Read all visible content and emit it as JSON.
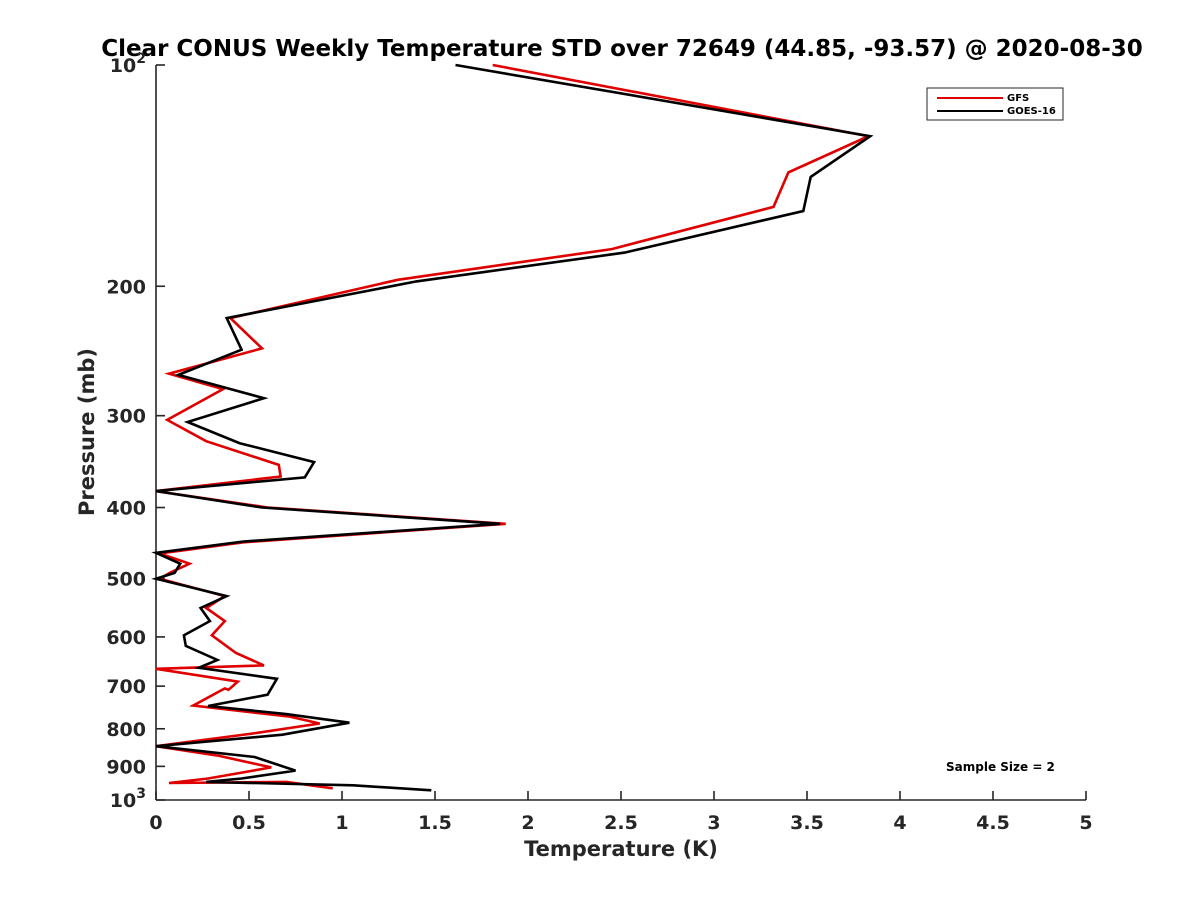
{
  "chart_data": {
    "type": "line",
    "title": "Clear CONUS Weekly Temperature STD over 72649 (44.85, -93.57) @ 2020-08-30",
    "xlabel": "Temperature (K)",
    "ylabel": "Pressure (mb)",
    "xlim": [
      0,
      5
    ],
    "ylim": [
      100,
      1000
    ],
    "yscale": "log",
    "yreversed": true,
    "grid": false,
    "legend_position": "top-right",
    "x_ticks": [
      "0",
      "0.5",
      "1",
      "1.5",
      "2",
      "2.5",
      "3",
      "3.5",
      "4",
      "4.5",
      "5"
    ],
    "y_ticks": [
      {
        "value": 100,
        "label": "10",
        "sup": "2"
      },
      {
        "value": 200,
        "label": "200",
        "sup": ""
      },
      {
        "value": 300,
        "label": "300",
        "sup": ""
      },
      {
        "value": 400,
        "label": "400",
        "sup": ""
      },
      {
        "value": 500,
        "label": "500",
        "sup": ""
      },
      {
        "value": 600,
        "label": "600",
        "sup": ""
      },
      {
        "value": 700,
        "label": "700",
        "sup": ""
      },
      {
        "value": 800,
        "label": "800",
        "sup": ""
      },
      {
        "value": 900,
        "label": "900",
        "sup": ""
      },
      {
        "value": 1000,
        "label": "10",
        "sup": "3"
      }
    ],
    "annotation": "Sample Size = 2",
    "series": [
      {
        "name": "GFS",
        "color": "#e00000",
        "points": [
          [
            1.81,
            100
          ],
          [
            3.83,
            125
          ],
          [
            3.4,
            140
          ],
          [
            3.32,
            156
          ],
          [
            2.45,
            178
          ],
          [
            1.3,
            196
          ],
          [
            0.4,
            221
          ],
          [
            0.57,
            243
          ],
          [
            0.07,
            263
          ],
          [
            0.36,
            276
          ],
          [
            0.06,
            304
          ],
          [
            0.27,
            325
          ],
          [
            0.66,
            350
          ],
          [
            0.67,
            363
          ],
          [
            0.0,
            380
          ],
          [
            0.6,
            400
          ],
          [
            1.88,
            421
          ],
          [
            0.47,
            446
          ],
          [
            0.02,
            462
          ],
          [
            0.18,
            477
          ],
          [
            0.08,
            490
          ],
          [
            0.02,
            500
          ],
          [
            0.37,
            528
          ],
          [
            0.27,
            548
          ],
          [
            0.37,
            571
          ],
          [
            0.3,
            597
          ],
          [
            0.43,
            631
          ],
          [
            0.58,
            656
          ],
          [
            0.0,
            663
          ],
          [
            0.44,
            690
          ],
          [
            0.39,
            708
          ],
          [
            0.37,
            705
          ],
          [
            0.2,
            744
          ],
          [
            0.72,
            770
          ],
          [
            0.88,
            787
          ],
          [
            0.52,
            812
          ],
          [
            0.0,
            845
          ],
          [
            0.34,
            871
          ],
          [
            0.62,
            903
          ],
          [
            0.28,
            935
          ],
          [
            0.07,
            948
          ],
          [
            0.7,
            945
          ],
          [
            0.95,
            964
          ]
        ]
      },
      {
        "name": "GOES-16",
        "color": "#000000",
        "points": [
          [
            1.61,
            100
          ],
          [
            3.84,
            125
          ],
          [
            3.52,
            142
          ],
          [
            3.48,
            158
          ],
          [
            2.52,
            180
          ],
          [
            1.4,
            197
          ],
          [
            0.38,
            221
          ],
          [
            0.46,
            244
          ],
          [
            0.12,
            264
          ],
          [
            0.58,
            284
          ],
          [
            0.17,
            306
          ],
          [
            0.45,
            327
          ],
          [
            0.85,
            347
          ],
          [
            0.8,
            364
          ],
          [
            0.0,
            380
          ],
          [
            0.57,
            400
          ],
          [
            1.85,
            421
          ],
          [
            0.47,
            445
          ],
          [
            0.0,
            461
          ],
          [
            0.13,
            477
          ],
          [
            0.1,
            491
          ],
          [
            0.0,
            500
          ],
          [
            0.38,
            528
          ],
          [
            0.24,
            548
          ],
          [
            0.29,
            571
          ],
          [
            0.15,
            597
          ],
          [
            0.16,
            617
          ],
          [
            0.33,
            645
          ],
          [
            0.23,
            661
          ],
          [
            0.65,
            684
          ],
          [
            0.6,
            719
          ],
          [
            0.28,
            745
          ],
          [
            0.7,
            764
          ],
          [
            1.04,
            785
          ],
          [
            0.68,
            815
          ],
          [
            0.0,
            845
          ],
          [
            0.53,
            874
          ],
          [
            0.75,
            912
          ],
          [
            0.46,
            935
          ],
          [
            0.27,
            945
          ],
          [
            1.06,
            955
          ],
          [
            1.48,
            970
          ]
        ]
      }
    ]
  }
}
